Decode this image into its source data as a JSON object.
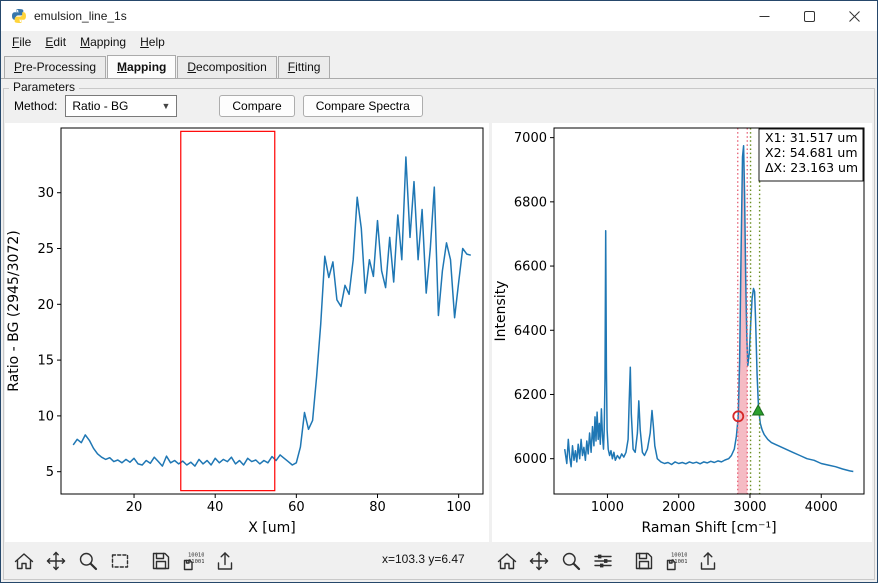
{
  "window": {
    "title": "emulsion_line_1s"
  },
  "menubar": {
    "items": [
      {
        "first": "F",
        "rest": "ile"
      },
      {
        "first": "E",
        "rest": "dit"
      },
      {
        "first": "M",
        "rest": "apping"
      },
      {
        "first": "H",
        "rest": "elp"
      }
    ]
  },
  "tabs": {
    "items": [
      {
        "first": "P",
        "rest": "re-Processing",
        "selected": false
      },
      {
        "first": "M",
        "rest": "apping",
        "selected": true
      },
      {
        "first": "D",
        "rest": "ecomposition",
        "selected": false
      },
      {
        "first": "F",
        "rest": "itting",
        "selected": false
      }
    ]
  },
  "parameters": {
    "frame_label": "Parameters",
    "method_label": "Method:",
    "method_value": "Ratio - BG",
    "compare_button": "Compare",
    "compare_spectra_button": "Compare Spectra"
  },
  "statusbar": {
    "coords": "x=103.3 y=6.47"
  },
  "toolbars": {
    "left": [
      "home",
      "pan",
      "zoom",
      "rect-select",
      "save",
      "save-data",
      "export"
    ],
    "right": [
      "home",
      "pan",
      "zoom",
      "configure-subplots",
      "save",
      "save-data",
      "export"
    ]
  },
  "colors": {
    "line": "#1f77b4",
    "selection": "#ff0000",
    "band_red": "#e8697d",
    "band_green": "#6b8e23",
    "marker_red": "#d62728",
    "marker_green": "#2ca02c"
  },
  "chart_data": [
    {
      "type": "line",
      "title": "",
      "xlabel": "X [um]",
      "ylabel": "Ratio - BG (2945/3072)",
      "xlim": [
        2,
        106
      ],
      "ylim": [
        3,
        35.8
      ],
      "xticks": [
        20,
        40,
        60,
        80,
        100
      ],
      "yticks": [
        5,
        10,
        15,
        20,
        25,
        30
      ],
      "line_color": "#1f77b4",
      "x": [
        5,
        6,
        7,
        8,
        9,
        10,
        11,
        12,
        13,
        14,
        15,
        16,
        17,
        18,
        19,
        20,
        21,
        22,
        23,
        24,
        25,
        26,
        27,
        28,
        29,
        30,
        31,
        32,
        33,
        34,
        35,
        36,
        37,
        38,
        39,
        40,
        41,
        42,
        43,
        44,
        45,
        46,
        47,
        48,
        49,
        50,
        51,
        52,
        53,
        54,
        55,
        56,
        57,
        58,
        59,
        60,
        61,
        62,
        63,
        64,
        65,
        66,
        67,
        68,
        69,
        70,
        71,
        72,
        73,
        74,
        75,
        76,
        77,
        78,
        79,
        80,
        81,
        82,
        83,
        84,
        85,
        86,
        87,
        88,
        89,
        90,
        91,
        92,
        93,
        94,
        95,
        96,
        97,
        98,
        99,
        100,
        101,
        102,
        103
      ],
      "y": [
        7.4,
        7.9,
        7.6,
        8.3,
        7.8,
        7.1,
        6.6,
        6.3,
        6.1,
        6.25,
        5.9,
        6.05,
        5.8,
        6.1,
        5.85,
        6.2,
        5.7,
        5.6,
        6.0,
        5.75,
        6.3,
        5.9,
        5.5,
        6.4,
        5.8,
        6.0,
        5.7,
        5.95,
        5.6,
        5.85,
        5.5,
        6.1,
        5.7,
        6.0,
        5.6,
        6.2,
        5.8,
        6.1,
        5.9,
        6.3,
        5.7,
        6.0,
        5.6,
        6.2,
        5.9,
        6.05,
        5.7,
        6.0,
        5.8,
        6.35,
        6.0,
        6.5,
        6.2,
        5.9,
        5.6,
        5.8,
        7.2,
        10.3,
        8.8,
        9.6,
        13.5,
        18.2,
        24.3,
        22.4,
        23.8,
        20.4,
        19.8,
        21.7,
        20.9,
        24.0,
        29.6,
        26.8,
        21.0,
        24.0,
        22.5,
        27.5,
        23.0,
        21.5,
        26.0,
        22.0,
        28.0,
        24.0,
        33.2,
        26.0,
        31.0,
        24.0,
        28.5,
        21.0,
        25.0,
        30.5,
        19.0,
        23.0,
        25.5,
        24.0,
        18.8,
        22.0,
        25.0,
        24.5,
        24.4
      ],
      "selection": {
        "x1": 31.517,
        "x2": 54.681,
        "y1": 3.3,
        "y2": 35.5,
        "color": "#ff0000"
      }
    },
    {
      "type": "line",
      "title": "",
      "xlabel": "Raman Shift [cm⁻¹]",
      "ylabel": "Intensity",
      "xlim": [
        250,
        4600
      ],
      "ylim": [
        5890,
        7030
      ],
      "xticks": [
        1000,
        2000,
        3000,
        4000
      ],
      "yticks": [
        6000,
        6200,
        6400,
        6600,
        6800,
        7000
      ],
      "line_color": "#1f77b4",
      "x": [
        400,
        430,
        450,
        470,
        490,
        510,
        530,
        550,
        570,
        590,
        610,
        630,
        650,
        670,
        690,
        710,
        730,
        750,
        770,
        790,
        810,
        825,
        840,
        855,
        870,
        885,
        900,
        915,
        930,
        945,
        955,
        965,
        975,
        985,
        995,
        1010,
        1030,
        1050,
        1070,
        1090,
        1110,
        1140,
        1170,
        1200,
        1230,
        1260,
        1290,
        1305,
        1320,
        1335,
        1360,
        1390,
        1420,
        1440,
        1460,
        1490,
        1520,
        1560,
        1600,
        1625,
        1645,
        1665,
        1700,
        1750,
        1800,
        1850,
        1900,
        1950,
        2000,
        2050,
        2100,
        2150,
        2200,
        2250,
        2300,
        2350,
        2400,
        2450,
        2500,
        2550,
        2600,
        2650,
        2700,
        2740,
        2780,
        2810,
        2835,
        2855,
        2875,
        2895,
        2910,
        2925,
        2940,
        2955,
        2970,
        2990,
        3010,
        3030,
        3050,
        3065,
        3080,
        3100,
        3120,
        3145,
        3170,
        3200,
        3250,
        3300,
        3350,
        3400,
        3500,
        3600,
        3700,
        3800,
        3900,
        4000,
        4100,
        4200,
        4300,
        4400,
        4450
      ],
      "y": [
        6030,
        5985,
        6060,
        6005,
        5975,
        6040,
        5995,
        6025,
        5990,
        6045,
        6000,
        6060,
        6010,
        6035,
        5995,
        6055,
        6015,
        6080,
        6020,
        6100,
        6040,
        6130,
        6055,
        6145,
        6060,
        6110,
        6045,
        6155,
        6070,
        6030,
        6090,
        6250,
        6710,
        6280,
        6090,
        6030,
        6010,
        6025,
        6000,
        6020,
        5995,
        6010,
        6000,
        6015,
        6005,
        6020,
        6060,
        6180,
        6285,
        6140,
        6030,
        6020,
        6080,
        6180,
        6090,
        6020,
        6010,
        6030,
        6080,
        6150,
        6100,
        6040,
        6000,
        5990,
        5985,
        5988,
        5982,
        5990,
        5985,
        5988,
        5984,
        5990,
        5986,
        5989,
        5984,
        5990,
        5987,
        5992,
        5988,
        5993,
        5990,
        5996,
        6000,
        6010,
        6030,
        6070,
        6130,
        6300,
        6650,
        6940,
        6975,
        6820,
        6560,
        6380,
        6290,
        6330,
        6420,
        6500,
        6530,
        6520,
        6420,
        6260,
        6160,
        6110,
        6090,
        6075,
        6060,
        6050,
        6045,
        6040,
        6030,
        6020,
        6010,
        6000,
        5995,
        5985,
        5980,
        5975,
        5968,
        5962,
        5960
      ],
      "bands": [
        {
          "x1": 2828,
          "x2": 2962,
          "edge": "#e8697d",
          "fill": "#e8697d",
          "fill_opacity": 0.45
        },
        {
          "x1": 3008,
          "x2": 3135,
          "edge": "#6b8e23",
          "fill": null
        }
      ],
      "markers": [
        {
          "shape": "circle",
          "x": 2836,
          "y": 6132,
          "color": "#d62728"
        },
        {
          "shape": "triangle",
          "x": 3115,
          "y": 6150,
          "color": "#2ca02c"
        }
      ],
      "annotation": [
        "X1: 31.517 um",
        "X2: 54.681 um",
        "ΔX: 23.163 um"
      ]
    }
  ]
}
